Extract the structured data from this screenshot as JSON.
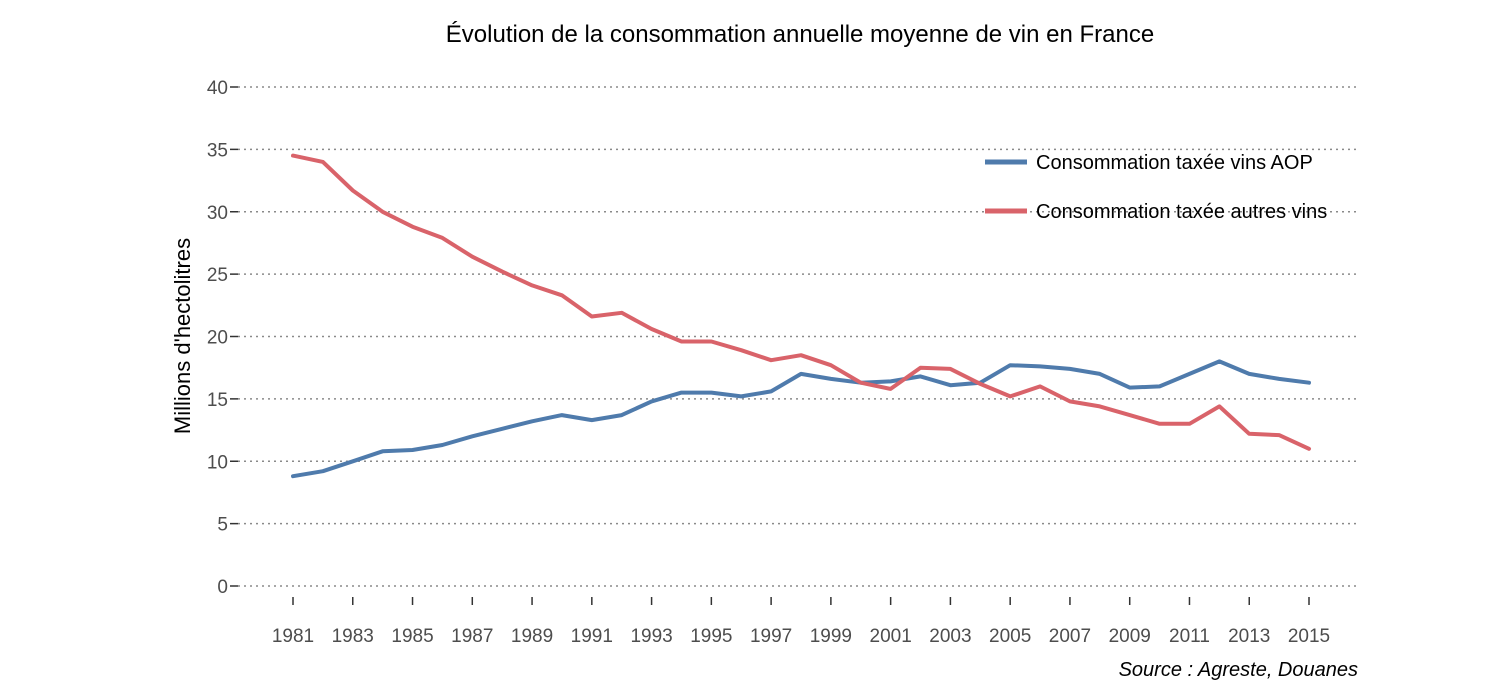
{
  "chart_data": {
    "type": "line",
    "title": "Évolution de la consommation annuelle moyenne de vin en France",
    "ylabel": "Millions d'hectolitres",
    "xlabel": "",
    "ylim": [
      0,
      40
    ],
    "yticks": [
      0,
      5,
      10,
      15,
      20,
      25,
      30,
      35,
      40
    ],
    "xticks": [
      1981,
      1983,
      1985,
      1987,
      1989,
      1991,
      1993,
      1995,
      1997,
      1999,
      2001,
      2003,
      2005,
      2007,
      2009,
      2011,
      2013,
      2015
    ],
    "x": [
      1981,
      1982,
      1983,
      1984,
      1985,
      1986,
      1987,
      1988,
      1989,
      1990,
      1991,
      1992,
      1993,
      1994,
      1995,
      1996,
      1997,
      1998,
      1999,
      2000,
      2001,
      2002,
      2003,
      2004,
      2005,
      2006,
      2007,
      2008,
      2009,
      2010,
      2011,
      2012,
      2013,
      2014,
      2015
    ],
    "grid": "horizontal dotted",
    "legend_position": "top-right",
    "source": "Source : Agreste, Douanes",
    "series": [
      {
        "name": "Consommation taxée vins AOP",
        "color": "#4f7bac",
        "values": [
          8.8,
          9.2,
          10.0,
          10.8,
          10.9,
          11.3,
          12.0,
          12.6,
          13.2,
          13.7,
          13.3,
          13.7,
          14.8,
          15.5,
          15.5,
          15.2,
          15.6,
          17.0,
          16.6,
          16.3,
          16.4,
          16.8,
          16.1,
          16.3,
          17.7,
          17.6,
          17.4,
          17.0,
          15.9,
          16.0,
          17.0,
          18.0,
          17.0,
          16.6,
          16.3
        ]
      },
      {
        "name": "Consommation taxée autres vins",
        "color": "#d9636a",
        "values": [
          34.5,
          34.0,
          31.7,
          30.0,
          28.8,
          27.9,
          26.4,
          25.2,
          24.1,
          23.3,
          21.6,
          21.9,
          20.6,
          19.6,
          19.6,
          18.9,
          18.1,
          18.5,
          17.7,
          16.3,
          15.8,
          17.5,
          17.4,
          16.2,
          15.2,
          16.0,
          14.8,
          14.4,
          13.7,
          13.0,
          13.0,
          14.4,
          12.2,
          12.1,
          11.0
        ]
      }
    ]
  }
}
